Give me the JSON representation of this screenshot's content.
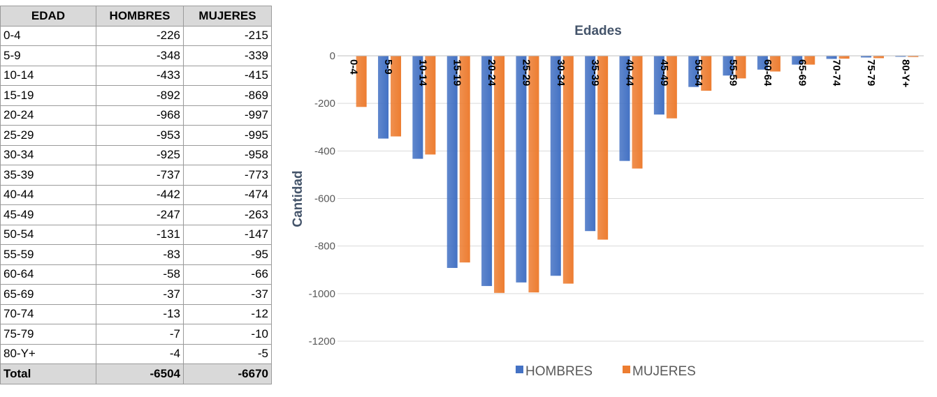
{
  "table": {
    "header": [
      "EDAD",
      "HOMBRES",
      "MUJERES"
    ],
    "rows": [
      [
        "0-4",
        -226,
        -215
      ],
      [
        "5-9",
        -348,
        -339
      ],
      [
        "10-14",
        -433,
        -415
      ],
      [
        "15-19",
        -892,
        -869
      ],
      [
        "20-24",
        -968,
        -997
      ],
      [
        "25-29",
        -953,
        -995
      ],
      [
        "30-34",
        -925,
        -958
      ],
      [
        "35-39",
        -737,
        -773
      ],
      [
        "40-44",
        -442,
        -474
      ],
      [
        "45-49",
        -247,
        -263
      ],
      [
        "50-54",
        -131,
        -147
      ],
      [
        "55-59",
        -83,
        -95
      ],
      [
        "60-64",
        -58,
        -66
      ],
      [
        "65-69",
        -37,
        -37
      ],
      [
        "70-74",
        -13,
        -12
      ],
      [
        "75-79",
        -7,
        -10
      ],
      [
        "80-Y+",
        -4,
        -5
      ]
    ],
    "total": [
      "Total",
      -6504,
      -6670
    ]
  },
  "chart_data": {
    "type": "bar",
    "title": "Edades",
    "y_label": "Cantidad",
    "categories": [
      "0-4",
      "5-9",
      "10-14",
      "15-19",
      "20-24",
      "25-29",
      "30-34",
      "35-39",
      "40-44",
      "45-49",
      "50-54",
      "55-59",
      "60-64",
      "65-69",
      "70-74",
      "75-79",
      "80-Y+"
    ],
    "series": [
      {
        "name": "HOMBRES",
        "color": "#4472c4",
        "values": [
          null,
          -348,
          -433,
          -892,
          -968,
          -953,
          -925,
          -737,
          -442,
          -247,
          -131,
          -83,
          -58,
          -37,
          -13,
          -7,
          -4
        ]
      },
      {
        "name": "MUJERES",
        "color": "#ed7d31",
        "values": [
          -215,
          -339,
          -415,
          -869,
          -997,
          -995,
          -958,
          -773,
          -474,
          -263,
          -147,
          -95,
          -66,
          -37,
          -12,
          -10,
          -5
        ]
      }
    ],
    "ylim": [
      -1200,
      0
    ],
    "yticks": [
      0,
      -200,
      -400,
      -600,
      -800,
      -1000,
      -1200
    ],
    "grid": true,
    "legend": "bottom"
  }
}
